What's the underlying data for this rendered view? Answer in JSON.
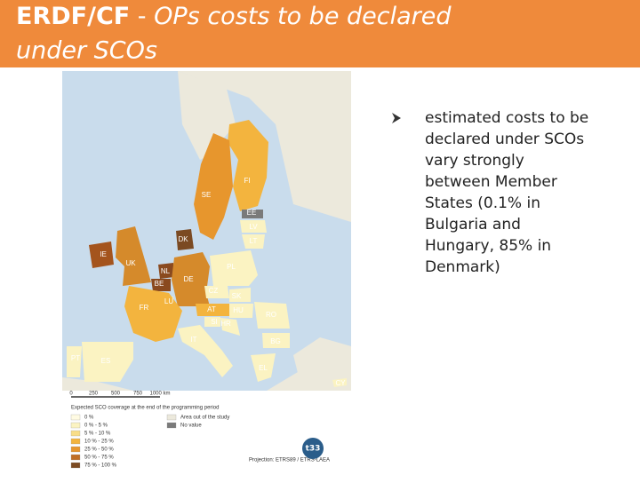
{
  "header": {
    "title_bold": "ERDF/CF",
    "title_sep": " - ",
    "title_italic_1": "OPs costs to be declared",
    "title_italic_2": "under SCOs"
  },
  "bullet": {
    "lines": [
      "estimated costs to be",
      "declared under SCOs",
      "vary strongly",
      "between Member",
      "States (0.1% in",
      "Bulgaria and",
      "Hungary, 85% in",
      "Denmark)"
    ]
  },
  "map": {
    "countries": [
      "FI",
      "SE",
      "EE",
      "LV",
      "LT",
      "DK",
      "IE",
      "UK",
      "NL",
      "BE",
      "DE",
      "PL",
      "CZ",
      "SK",
      "LU",
      "FR",
      "AT",
      "HU",
      "SI",
      "HR",
      "RO",
      "IT",
      "BG",
      "PT",
      "ES",
      "EL",
      "CY"
    ],
    "scale": [
      "0",
      "250",
      "500",
      "750",
      "1000 km"
    ],
    "legend_title": "Expected SCO coverage at the end of the programming period",
    "legend": [
      "0 %",
      "0 % - 5 %",
      "5 % - 10 %",
      "10 % - 25 %",
      "25 % - 50 %",
      "50 % - 75 %",
      "75 % - 100 %"
    ],
    "legend_extra": [
      "Area out of the study",
      "No value"
    ],
    "projection": "Projection: ETRS89 / ETRS-LAEA",
    "logo": "t33"
  }
}
